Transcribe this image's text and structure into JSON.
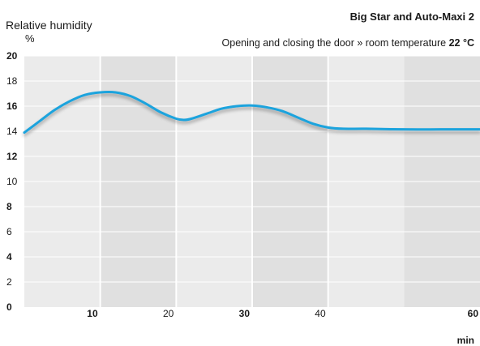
{
  "chart_data": {
    "type": "line",
    "title": "Big Star and Auto-Maxi 2",
    "subtitle_text": "Opening and closing the door » room temperature",
    "subtitle_value": "22 °C",
    "ylabel": "Relative humidity",
    "yunit": "%",
    "xunit": "min",
    "xlim": [
      0,
      60
    ],
    "ylim": [
      0,
      20
    ],
    "x_ticks": [
      {
        "value": 10,
        "label": "10",
        "bold": true
      },
      {
        "value": 20,
        "label": "20",
        "bold": false
      },
      {
        "value": 30,
        "label": "30",
        "bold": true
      },
      {
        "value": 40,
        "label": "40",
        "bold": false
      },
      {
        "value": 60,
        "label": "60",
        "bold": true
      }
    ],
    "y_ticks": [
      {
        "value": 0,
        "label": "0",
        "bold": true
      },
      {
        "value": 2,
        "label": "2",
        "bold": false
      },
      {
        "value": 4,
        "label": "4",
        "bold": true
      },
      {
        "value": 6,
        "label": "6",
        "bold": false
      },
      {
        "value": 8,
        "label": "8",
        "bold": true
      },
      {
        "value": 10,
        "label": "10",
        "bold": false
      },
      {
        "value": 12,
        "label": "12",
        "bold": true
      },
      {
        "value": 14,
        "label": "14",
        "bold": false
      },
      {
        "value": 16,
        "label": "16",
        "bold": true
      },
      {
        "value": 18,
        "label": "18",
        "bold": false
      },
      {
        "value": 20,
        "label": "20",
        "bold": true
      }
    ],
    "series": [
      {
        "x": [
          0,
          2,
          4,
          6,
          8,
          10,
          12,
          14,
          16,
          18,
          20,
          21,
          22,
          24,
          26,
          28,
          30,
          32,
          34,
          36,
          38,
          40,
          42,
          45,
          50,
          55,
          60
        ],
        "y": [
          13.9,
          14.8,
          15.7,
          16.4,
          16.9,
          17.1,
          17.1,
          16.8,
          16.2,
          15.5,
          15.0,
          14.9,
          15.0,
          15.4,
          15.8,
          16.0,
          16.05,
          15.9,
          15.6,
          15.1,
          14.6,
          14.3,
          14.2,
          14.2,
          14.15,
          14.15,
          14.15
        ]
      }
    ],
    "grid": true,
    "colors": {
      "line": "#1aa3dd",
      "band_light": "#ebebeb",
      "band_dark": "#e0e0e0",
      "gridline": "#ffffff"
    }
  }
}
